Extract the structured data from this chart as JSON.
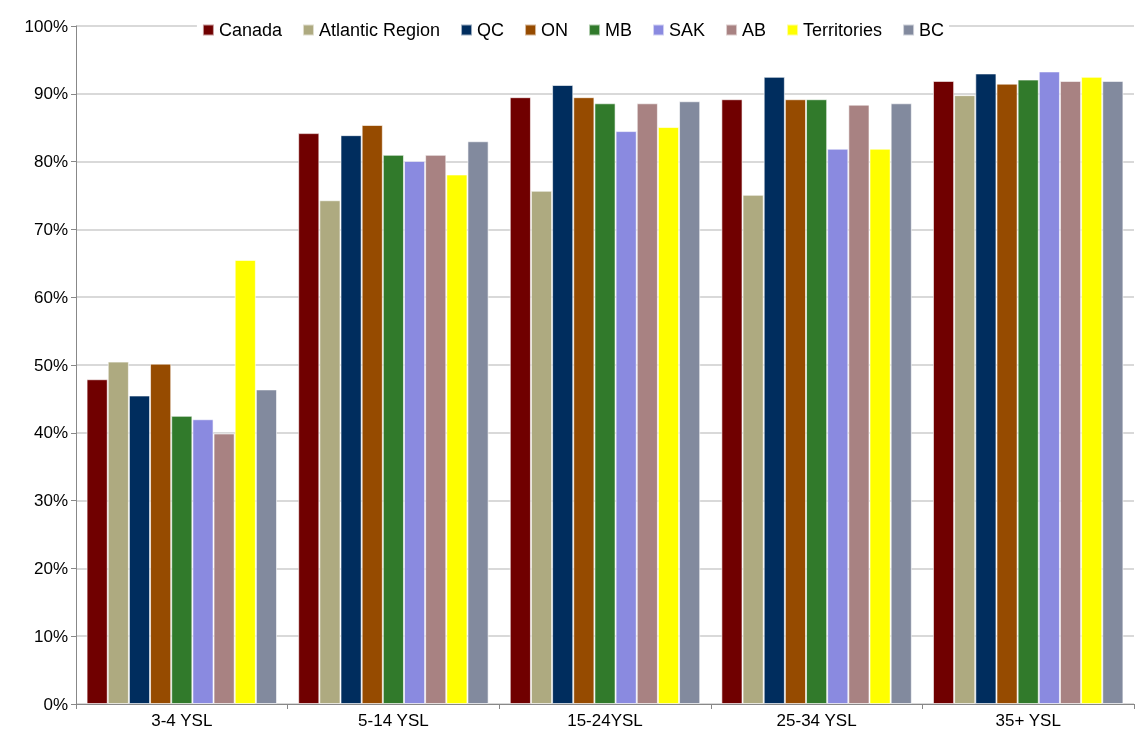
{
  "chart_data": {
    "type": "bar",
    "categories": [
      "3-4 YSL",
      "5-14 YSL",
      "15-24YSL",
      "25-34 YSL",
      "35+ YSL"
    ],
    "series": [
      {
        "name": "Canada",
        "color": "#700000",
        "values": [
          47.9,
          84.2,
          89.5,
          89.2,
          91.9
        ]
      },
      {
        "name": "Atlantic Region",
        "color": "#aeaa80",
        "values": [
          50.5,
          74.3,
          75.7,
          75.1,
          89.8
        ]
      },
      {
        "name": "QC",
        "color": "#002d5e",
        "values": [
          45.5,
          83.9,
          91.3,
          92.5,
          93.0
        ]
      },
      {
        "name": "ON",
        "color": "#964b00",
        "values": [
          50.2,
          85.4,
          89.5,
          89.2,
          91.5
        ]
      },
      {
        "name": "MB",
        "color": "#317a2b",
        "values": [
          42.5,
          81.0,
          88.6,
          89.2,
          92.1
        ]
      },
      {
        "name": "SAK",
        "color": "#8a8ae0",
        "values": [
          42.0,
          80.1,
          84.5,
          81.9,
          93.3
        ]
      },
      {
        "name": "AB",
        "color": "#a88282",
        "values": [
          39.9,
          81.0,
          88.6,
          88.4,
          91.9
        ]
      },
      {
        "name": "Territories",
        "color": "#ffff00",
        "values": [
          65.5,
          78.1,
          85.1,
          81.9,
          92.5
        ]
      },
      {
        "name": "BC",
        "color": "#828a9e",
        "values": [
          46.4,
          83.0,
          88.9,
          88.6,
          91.9
        ]
      }
    ],
    "ylim": [
      0,
      100
    ],
    "yticks": [
      {
        "value": 0,
        "label": "0%"
      },
      {
        "value": 10,
        "label": "10%"
      },
      {
        "value": 20,
        "label": "20%"
      },
      {
        "value": 30,
        "label": "30%"
      },
      {
        "value": 40,
        "label": "40%"
      },
      {
        "value": 50,
        "label": "50%"
      },
      {
        "value": 60,
        "label": "60%"
      },
      {
        "value": 70,
        "label": "70%"
      },
      {
        "value": 80,
        "label": "80%"
      },
      {
        "value": 90,
        "label": "90%"
      },
      {
        "value": 100,
        "label": "100%"
      }
    ],
    "grid": "y",
    "legend": "top"
  }
}
